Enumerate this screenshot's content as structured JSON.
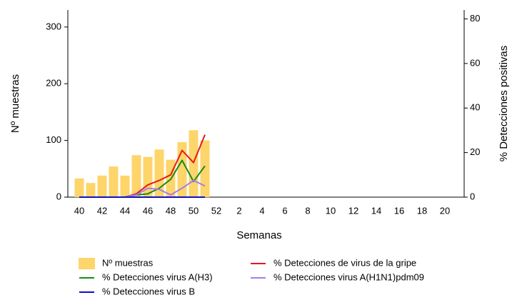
{
  "chart_data": {
    "type": "combo",
    "x_label": "Semanas",
    "y_label": "Nº muestras",
    "y2_label": "% Detecciones positivas",
    "categories": [
      "40",
      null,
      "42",
      null,
      "44",
      null,
      "46",
      null,
      "48",
      null,
      "50",
      null,
      "52",
      null,
      "2",
      null,
      "4",
      null,
      "6",
      null,
      "8",
      null,
      "10",
      null,
      "12",
      null,
      "14",
      null,
      "16",
      null,
      "18",
      null,
      "20"
    ],
    "ylim": [
      0,
      330
    ],
    "yticks": [
      0,
      100,
      200,
      300
    ],
    "y2lim": [
      0,
      84
    ],
    "y2ticks": [
      0,
      20,
      40,
      60,
      80
    ],
    "series": [
      {
        "name": "Nº muestras",
        "type": "bar",
        "color": "#fdd56a",
        "values": [
          33,
          25,
          38,
          54,
          38,
          74,
          71,
          84,
          66,
          97,
          118,
          100,
          null,
          null,
          null,
          null,
          null,
          null,
          null,
          null,
          null,
          null,
          null,
          null,
          null,
          null,
          null,
          null,
          null,
          null,
          null,
          null,
          null
        ]
      },
      {
        "name": "% Detecciones de virus de la gripe",
        "type": "line",
        "axis": "y2",
        "color": "#e31a1c",
        "values": [
          0,
          0,
          0,
          0,
          0,
          1.5,
          5.5,
          7.5,
          10,
          21,
          15.5,
          28,
          null,
          null,
          null,
          null,
          null,
          null,
          null,
          null,
          null,
          null,
          null,
          null,
          null,
          null,
          null,
          null,
          null,
          null,
          null,
          null,
          null
        ]
      },
      {
        "name": "% Detecciones virus A(H3)",
        "type": "line",
        "axis": "y2",
        "color": "#1a8a1a",
        "values": [
          0,
          0,
          0,
          0,
          0,
          1,
          1.5,
          4,
          8,
          16.5,
          7,
          14,
          null,
          null,
          null,
          null,
          null,
          null,
          null,
          null,
          null,
          null,
          null,
          null,
          null,
          null,
          null,
          null,
          null,
          null,
          null,
          null,
          null
        ]
      },
      {
        "name": "% Detecciones virus A(H1N1)pdm09",
        "type": "line",
        "axis": "y2",
        "color": "#a77de8",
        "values": [
          0,
          0,
          0,
          0,
          0,
          1,
          4,
          3.5,
          1,
          4,
          7.5,
          5,
          null,
          null,
          null,
          null,
          null,
          null,
          null,
          null,
          null,
          null,
          null,
          null,
          null,
          null,
          null,
          null,
          null,
          null,
          null,
          null,
          null
        ]
      },
      {
        "name": "% Detecciones virus B",
        "type": "line",
        "axis": "y2",
        "color": "#1010c8",
        "values": [
          0,
          0,
          0,
          0,
          0,
          0,
          0,
          0,
          0,
          0,
          0,
          0,
          null,
          null,
          null,
          null,
          null,
          null,
          null,
          null,
          null,
          null,
          null,
          null,
          null,
          null,
          null,
          null,
          null,
          null,
          null,
          null,
          null
        ]
      }
    ]
  }
}
